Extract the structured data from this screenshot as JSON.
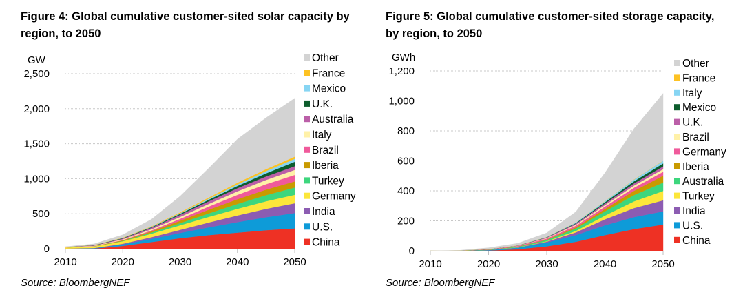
{
  "figures": [
    {
      "id": "fig4",
      "title": "Figure 4: Global cumulative customer-sited solar capacity by region, to 2050",
      "source": "Source: BloombergNEF"
    },
    {
      "id": "fig5",
      "title": "Figure 5: Global cumulative customer-sited storage capacity, by region, to 2050",
      "source": "Source: BloombergNEF"
    }
  ],
  "chart_data": [
    {
      "type": "area",
      "stacked": true,
      "title": "Figure 4: Global cumulative customer-sited solar capacity by region, to 2050",
      "xlabel": "",
      "ylabel": "GW",
      "xlim": [
        2010,
        2050
      ],
      "ylim": [
        0,
        2500
      ],
      "x_ticks": [
        "2010",
        "2020",
        "2030",
        "2040",
        "2050"
      ],
      "y_ticks": [
        "0",
        "500",
        "1,000",
        "1,500",
        "2,000",
        "2,500"
      ],
      "y_tick_values": [
        0,
        500,
        1000,
        1500,
        2000,
        2500
      ],
      "grid": "horizontal",
      "legend_position": "right",
      "x": [
        2010,
        2015,
        2020,
        2025,
        2030,
        2035,
        2040,
        2045,
        2050
      ],
      "series": [
        {
          "name": "China",
          "color": "#ee3124",
          "values": [
            0,
            2,
            40,
            95,
            150,
            195,
            230,
            265,
            290
          ]
        },
        {
          "name": "U.S.",
          "color": "#0e9bd8",
          "values": [
            2,
            5,
            22,
            45,
            75,
            110,
            150,
            185,
            220
          ]
        },
        {
          "name": "India",
          "color": "#8c5cb2",
          "values": [
            1,
            3,
            10,
            25,
            45,
            70,
            95,
            120,
            140
          ]
        },
        {
          "name": "Germany",
          "color": "#fce63a",
          "values": [
            15,
            22,
            35,
            50,
            65,
            80,
            95,
            108,
            121
          ]
        },
        {
          "name": "Turkey",
          "color": "#3dd67d",
          "values": [
            0,
            1,
            5,
            15,
            30,
            50,
            70,
            88,
            103
          ]
        },
        {
          "name": "Iberia",
          "color": "#c99a00",
          "values": [
            1,
            3,
            8,
            18,
            35,
            52,
            68,
            78,
            88
          ]
        },
        {
          "name": "Brazil",
          "color": "#f05a9b",
          "values": [
            0,
            1,
            5,
            14,
            27,
            45,
            62,
            78,
            92
          ]
        },
        {
          "name": "Italy",
          "color": "#fff1a8",
          "values": [
            4,
            6,
            10,
            17,
            27,
            38,
            50,
            60,
            72
          ]
        },
        {
          "name": "Australia",
          "color": "#bb5fa8",
          "values": [
            3,
            6,
            12,
            20,
            30,
            38,
            45,
            50,
            53
          ]
        },
        {
          "name": "U.K.",
          "color": "#0c5c2c",
          "values": [
            1,
            3,
            6,
            9,
            14,
            22,
            32,
            45,
            63
          ]
        },
        {
          "name": "Mexico",
          "color": "#87d5f3",
          "values": [
            0,
            1,
            2,
            5,
            10,
            15,
            22,
            32,
            42
          ]
        },
        {
          "name": "France",
          "color": "#fdc223",
          "values": [
            1,
            2,
            4,
            7,
            12,
            17,
            23,
            28,
            31
          ]
        },
        {
          "name": "Other",
          "color": "#d3d3d3",
          "values": [
            2,
            15,
            41,
            100,
            230,
            418,
            623,
            733,
            835
          ]
        }
      ]
    },
    {
      "type": "area",
      "stacked": true,
      "title": "Figure 5: Global cumulative customer-sited storage capacity, by region, to 2050",
      "xlabel": "",
      "ylabel": "GWh",
      "xlim": [
        2010,
        2050
      ],
      "ylim": [
        0,
        1200
      ],
      "x_ticks": [
        "2010",
        "2020",
        "2030",
        "2040",
        "2050"
      ],
      "y_ticks": [
        "0",
        "200",
        "400",
        "600",
        "800",
        "1,000",
        "1,200"
      ],
      "y_tick_values": [
        0,
        200,
        400,
        600,
        800,
        1000,
        1200
      ],
      "grid": "horizontal",
      "legend_position": "right",
      "x": [
        2010,
        2015,
        2020,
        2025,
        2030,
        2035,
        2040,
        2045,
        2050
      ],
      "series": [
        {
          "name": "China",
          "color": "#ee3124",
          "values": [
            0,
            0,
            2,
            10,
            30,
            60,
            105,
            145,
            175
          ]
        },
        {
          "name": "U.S.",
          "color": "#0e9bd8",
          "values": [
            0,
            0.5,
            3,
            10,
            25,
            45,
            65,
            80,
            88
          ]
        },
        {
          "name": "India",
          "color": "#8c5cb2",
          "values": [
            0,
            0,
            0.5,
            2,
            6,
            18,
            40,
            60,
            74
          ]
        },
        {
          "name": "Turkey",
          "color": "#fce63a",
          "values": [
            0,
            0,
            0.5,
            1,
            3,
            10,
            25,
            45,
            62
          ]
        },
        {
          "name": "Australia",
          "color": "#3dd67d",
          "values": [
            0,
            0.3,
            1.5,
            4,
            8,
            16,
            28,
            42,
            56
          ]
        },
        {
          "name": "Iberia",
          "color": "#c99a00",
          "values": [
            0,
            0,
            0.5,
            1,
            3,
            8,
            16,
            28,
            46
          ]
        },
        {
          "name": "Germany",
          "color": "#f05a9b",
          "values": [
            0,
            0.5,
            2,
            4,
            7,
            11,
            16,
            21,
            26
          ]
        },
        {
          "name": "Brazil",
          "color": "#fff1a8",
          "values": [
            0,
            0,
            0.3,
            1,
            3,
            6,
            10,
            14,
            18
          ]
        },
        {
          "name": "U.K.",
          "color": "#bb5fa8",
          "values": [
            0,
            0.2,
            0.8,
            2,
            4,
            7,
            11,
            15,
            18
          ]
        },
        {
          "name": "Mexico",
          "color": "#0c5c2c",
          "values": [
            0,
            0,
            0.2,
            0.5,
            1.5,
            4,
            8,
            14,
            20
          ]
        },
        {
          "name": "Italy",
          "color": "#87d5f3",
          "values": [
            0,
            0.2,
            0.5,
            1,
            2,
            4,
            7,
            11,
            17
          ]
        },
        {
          "name": "France",
          "color": "#fdc223",
          "values": [
            0,
            0,
            0.2,
            0.5,
            1,
            1,
            1.5,
            2,
            2
          ]
        },
        {
          "name": "Other",
          "color": "#d3d3d3",
          "values": [
            0,
            1.3,
            8,
            13,
            26,
            70,
            187,
            338,
            448
          ]
        }
      ]
    }
  ]
}
